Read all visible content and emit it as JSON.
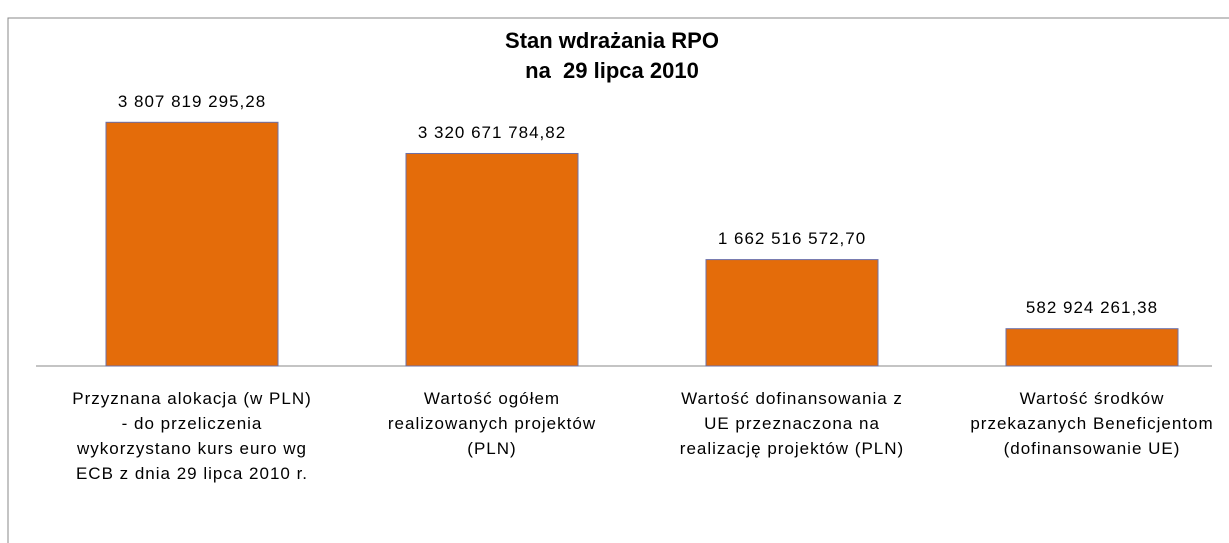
{
  "chart_data": {
    "type": "bar",
    "title": "Stan wdrażania RPO",
    "subtitle": "na  29 lipca 2010",
    "categories": [
      "Przyznana alokacja (w PLN) - do przeliczenia wykorzystano kurs euro wg ECB z dnia 29 lipca 2010 r.",
      "Wartość ogółem realizowanych projektów (PLN)",
      "Wartość dofinansowania z UE przeznaczona na realizację projektów (PLN)",
      "Wartość środków przekazanych Beneficjentom (dofinansowanie UE)"
    ],
    "values": [
      3807819295.28,
      3320671784.82,
      1662516572.7,
      582924261.38
    ],
    "value_labels": [
      "3 807 819 295,28",
      "3 320 671 784,82",
      "1 662 516 572,70",
      "582 924 261,38"
    ],
    "color": "#e46c0a",
    "ylim": [
      0,
      4500000000
    ]
  }
}
